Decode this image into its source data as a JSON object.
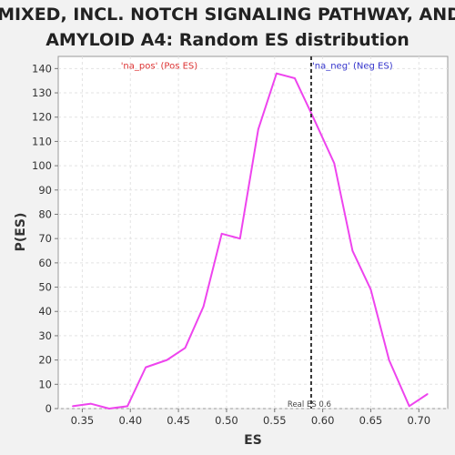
{
  "chart_data": {
    "type": "line",
    "title_lines": [
      "MIXED, INCL. NOTCH SIGNALING PATHWAY, AND",
      "AMYLOID A4: Random ES distribution"
    ],
    "xlabel": "ES",
    "ylabel": "P(ES)",
    "xlim": [
      0.325,
      0.73
    ],
    "ylim": [
      0,
      145
    ],
    "x_ticks": [
      0.35,
      0.4,
      0.45,
      0.5,
      0.55,
      0.6,
      0.65,
      0.7
    ],
    "x_tick_labels": [
      "0.35",
      "0.40",
      "0.45",
      "0.50",
      "0.55",
      "0.60",
      "0.65",
      "0.70"
    ],
    "y_ticks": [
      0,
      10,
      20,
      30,
      40,
      50,
      60,
      70,
      80,
      90,
      100,
      110,
      120,
      130,
      140
    ],
    "grid": true,
    "series": [
      {
        "color": "#ee44ee",
        "x": [
          0.34,
          0.359,
          0.378,
          0.397,
          0.416,
          0.438,
          0.457,
          0.476,
          0.495,
          0.514,
          0.533,
          0.552,
          0.571,
          0.59,
          0.612,
          0.631,
          0.65,
          0.669,
          0.69,
          0.709
        ],
        "y": [
          1,
          2,
          0,
          1,
          17,
          20,
          25,
          42,
          72,
          70,
          115,
          138,
          136,
          120,
          101,
          65,
          49,
          20,
          1,
          6
        ]
      }
    ],
    "real_es": {
      "x": 0.588,
      "label": "Real ES 0.6",
      "color": "#333333"
    },
    "annotations": [
      {
        "text": "'na_pos' (Pos ES)",
        "color": "#dd3333",
        "x": 0.39,
        "y": 141
      },
      {
        "text": "'na_neg' (Neg ES)",
        "color": "#3333cc",
        "x": 0.589,
        "y": 141
      }
    ]
  }
}
